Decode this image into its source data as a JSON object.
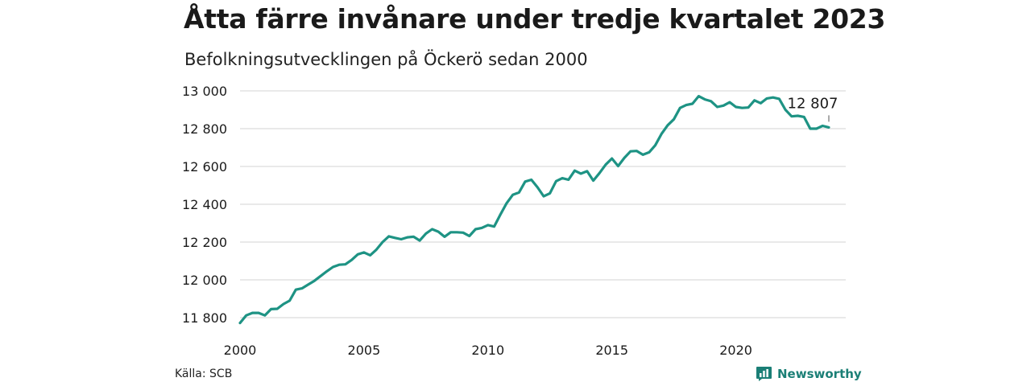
{
  "title": "Åtta färre invånare under tredje kvartalet 2023",
  "subtitle": "Befolkningsutvecklingen på Öckerö sedan 2000",
  "source": "Källa: SCB",
  "brand": {
    "name": "Newsworthy",
    "icon": "newsworthy-logo-icon",
    "color": "#1b7f76"
  },
  "chart_data": {
    "type": "line",
    "title": "Åtta färre invånare under tredje kvartalet 2023",
    "subtitle": "Befolkningsutvecklingen på Öckerö sedan 2000",
    "xlabel": "",
    "ylabel": "",
    "xlim": [
      2000,
      2024.5
    ],
    "ylim": [
      11760,
      13030
    ],
    "x_ticks": [
      2000,
      2005,
      2010,
      2015,
      2020
    ],
    "x_tick_labels": [
      "2000",
      "2005",
      "2010",
      "2015",
      "2020"
    ],
    "y_ticks": [
      11800,
      12000,
      12200,
      12400,
      12600,
      12800,
      13000
    ],
    "y_tick_labels": [
      "11 800",
      "12 000",
      "12 200",
      "12 400",
      "12 600",
      "12 800",
      "13 000"
    ],
    "grid": "horizontal",
    "line_color": "#1e9384",
    "annotation": {
      "text": "12 807",
      "x": 2023.75,
      "y": 12807
    },
    "series": [
      {
        "start": "2000Q1",
        "frequency": "quarterly",
        "values": [
          11772,
          11812,
          11825,
          11825,
          11812,
          11845,
          11847,
          11872,
          11890,
          11948,
          11955,
          11975,
          11995,
          12020,
          12045,
          12068,
          12080,
          12082,
          12105,
          12135,
          12145,
          12130,
          12160,
          12200,
          12230,
          12222,
          12215,
          12225,
          12228,
          12208,
          12245,
          12268,
          12255,
          12228,
          12252,
          12252,
          12250,
          12232,
          12268,
          12275,
          12290,
          12282,
          12345,
          12405,
          12450,
          12462,
          12520,
          12530,
          12490,
          12442,
          12458,
          12522,
          12538,
          12530,
          12578,
          12562,
          12575,
          12525,
          12565,
          12610,
          12642,
          12602,
          12645,
          12680,
          12682,
          12662,
          12675,
          12712,
          12772,
          12818,
          12850,
          12910,
          12925,
          12932,
          12972,
          12955,
          12945,
          12915,
          12922,
          12940,
          12915,
          12910,
          12912,
          12950,
          12935,
          12960,
          12965,
          12958,
          12900,
          12865,
          12868,
          12862,
          12800,
          12800,
          12815,
          12807
        ]
      }
    ]
  }
}
